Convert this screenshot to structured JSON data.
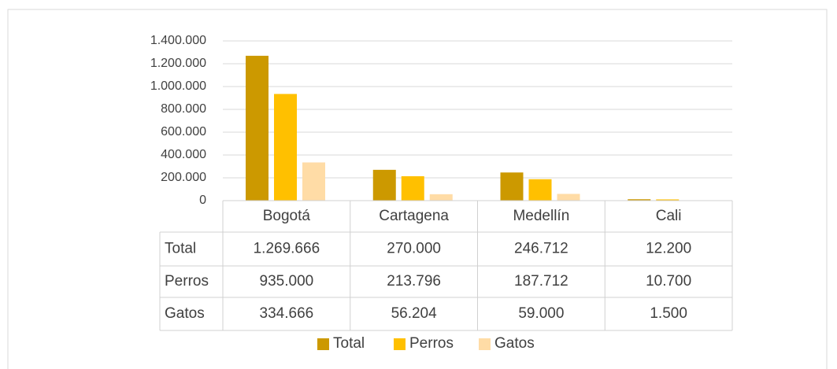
{
  "chart_data": {
    "type": "bar",
    "categories": [
      "Bogotá",
      "Cartagena",
      "Medellín",
      "Cali"
    ],
    "series": [
      {
        "name": "Total",
        "color": "#cc9900",
        "values": [
          1269666,
          270000,
          246712,
          12200
        ],
        "value_labels": [
          "1.269.666",
          "270.000",
          "246.712",
          "12.200"
        ]
      },
      {
        "name": "Perros",
        "color": "#ffc000",
        "values": [
          935000,
          213796,
          187712,
          10700
        ],
        "value_labels": [
          "935.000",
          "213.796",
          "187.712",
          "10.700"
        ]
      },
      {
        "name": "Gatos",
        "color": "#ffdca6",
        "values": [
          334666,
          56204,
          59000,
          1500
        ],
        "value_labels": [
          "334.666",
          "56.204",
          "59.000",
          "1.500"
        ]
      }
    ],
    "ylim": [
      0,
      1400000
    ],
    "yticks": [
      0,
      {
        "value": 200000,
        "label": "200.000"
      },
      {
        "value": 400000,
        "label": "400.000"
      },
      {
        "value": 600000,
        "label": "600.000"
      },
      {
        "value": 800000,
        "label": "800.000"
      },
      {
        "value": 1000000,
        "label": "1.000.000"
      },
      {
        "value": 1200000,
        "label": "1.200.000"
      },
      {
        "value": 1400000,
        "label": "1.400.000"
      }
    ],
    "grid": true,
    "legend": "bottom"
  }
}
